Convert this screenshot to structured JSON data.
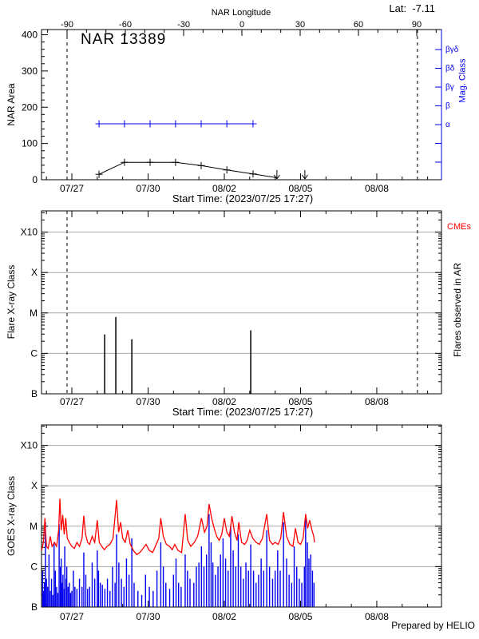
{
  "figure": {
    "title": "NAR 13389",
    "lat_label": "Lat:  -7.11",
    "top_axis_title": "NAR Longitude",
    "start_time_label": "Start Time: (2023/07/25 17:27)",
    "prepared_by": "Prepared by HELIO",
    "accent_blue": "#0000ee",
    "accent_red": "#ff0000",
    "grid_gray": "#a8a8a8"
  },
  "chart_data": [
    {
      "id": "nar_area_panel",
      "type": "line",
      "title": "NAR 13389",
      "ylabel": "NAR Area",
      "ylim": [
        0,
        400
      ],
      "yticks": [
        0,
        100,
        200,
        300,
        400
      ],
      "y_minor_step": 20,
      "grid": false,
      "x_axis_title": "Start Time: (2023/07/25 17:27)",
      "x_date_labels": [
        "07/27",
        "07/30",
        "08/02",
        "08/05",
        "08/08"
      ],
      "x_date_label_days": [
        0,
        3,
        6,
        9,
        12
      ],
      "x_range_days": [
        -1.19,
        14.55
      ],
      "top_axis": {
        "title": "NAR Longitude",
        "tick_values": [
          -90,
          -60,
          -30,
          0,
          30,
          60,
          90
        ],
        "minor_step": 10,
        "lat_annotation": "Lat:  -7.11"
      },
      "limb_crossing_days": [
        -0.19,
        13.6
      ],
      "right_axis": {
        "title": "Mag. Class",
        "labels": [
          "βγδ",
          "βδ",
          "βγ",
          "β",
          "α"
        ],
        "color": "#0000ee"
      },
      "area_series": {
        "name": "NAR area",
        "color": "#000000",
        "marker": "plus",
        "days": [
          1.07,
          2.07,
          3.08,
          4.08,
          5.09,
          6.1,
          7.13
        ],
        "values": [
          15,
          48,
          48,
          48,
          39,
          27,
          16
        ]
      },
      "area_upper_limits": {
        "marker": "down-arrow",
        "days": [
          8.07,
          9.17
        ],
        "values": [
          0,
          0
        ]
      },
      "mag_class_series": {
        "name": "Magnetic class",
        "color": "#0000ee",
        "level": "α",
        "marker": "plus",
        "days": [
          1.07,
          2.07,
          3.08,
          4.08,
          5.09,
          6.1,
          7.13
        ]
      }
    },
    {
      "id": "flares_panel",
      "type": "bar",
      "ylabel": "Flare X-ray Class",
      "yscale": "log",
      "ytick_labels": [
        "B",
        "C",
        "M",
        "X",
        "X10"
      ],
      "ytick_decades_above_B": [
        0,
        1,
        2,
        3,
        4
      ],
      "grid": true,
      "right_label": "Flares observed in AR",
      "cme_label": "CMEs",
      "cme_color": "#ff0000",
      "cme_events": [],
      "x_axis_title": "Start Time: (2023/07/25 17:27)",
      "x_date_labels": [
        "07/27",
        "07/30",
        "08/02",
        "08/05",
        "08/08"
      ],
      "x_date_label_days": [
        0,
        3,
        6,
        9,
        12
      ],
      "limb_crossing_days": [
        -0.19,
        13.6
      ],
      "flares": {
        "color": "#000000",
        "days": [
          1.29,
          1.73,
          2.36,
          7.04
        ],
        "classes": [
          "C3.0",
          "C8.0",
          "C2.2",
          "C3.7"
        ],
        "decades_above_B": [
          1.47,
          1.9,
          1.35,
          1.57
        ]
      }
    },
    {
      "id": "goes_panel",
      "type": "line",
      "ylabel": "GOES X-ray Class",
      "yscale": "log",
      "ytick_labels": [
        "B",
        "C",
        "M",
        "X",
        "X10"
      ],
      "ytick_decades_above_B": [
        0,
        1,
        2,
        3,
        4
      ],
      "grid": true,
      "credit": "Prepared by HELIO",
      "x_date_labels": [
        "07/27",
        "07/30",
        "08/02",
        "08/05",
        "08/08"
      ],
      "x_date_label_days": [
        0,
        3,
        6,
        9,
        12
      ],
      "series": [
        {
          "name": "GOES long channel",
          "color": "#ff0000",
          "style": "line",
          "points": [
            [
              -1.19,
              1.4
            ],
            [
              -1.12,
              1.6
            ],
            [
              -1.06,
              2.2
            ],
            [
              -1.0,
              1.5
            ],
            [
              -0.93,
              1.45
            ],
            [
              -0.85,
              1.75
            ],
            [
              -0.78,
              1.5
            ],
            [
              -0.68,
              1.6
            ],
            [
              -0.6,
              1.5
            ],
            [
              -0.52,
              1.9
            ],
            [
              -0.47,
              2.68
            ],
            [
              -0.42,
              1.9
            ],
            [
              -0.36,
              2.28
            ],
            [
              -0.3,
              1.8
            ],
            [
              -0.24,
              2.2
            ],
            [
              -0.18,
              1.7
            ],
            [
              -0.1,
              1.6
            ],
            [
              0.0,
              1.5
            ],
            [
              0.1,
              1.45
            ],
            [
              0.2,
              1.6
            ],
            [
              0.3,
              1.5
            ],
            [
              0.4,
              1.7
            ],
            [
              0.47,
              2.26
            ],
            [
              0.54,
              1.8
            ],
            [
              0.62,
              1.6
            ],
            [
              0.7,
              1.55
            ],
            [
              0.8,
              1.75
            ],
            [
              0.9,
              1.6
            ],
            [
              1.0,
              2.15
            ],
            [
              1.08,
              1.6
            ],
            [
              1.18,
              1.5
            ],
            [
              1.28,
              1.42
            ],
            [
              1.38,
              1.5
            ],
            [
              1.5,
              1.55
            ],
            [
              1.62,
              1.7
            ],
            [
              1.76,
              2.65
            ],
            [
              1.84,
              1.85
            ],
            [
              1.92,
              2.1
            ],
            [
              2.0,
              1.7
            ],
            [
              2.1,
              1.6
            ],
            [
              2.2,
              1.9
            ],
            [
              2.3,
              1.55
            ],
            [
              2.42,
              1.4
            ],
            [
              2.55,
              1.3
            ],
            [
              2.68,
              1.35
            ],
            [
              2.8,
              1.45
            ],
            [
              2.92,
              1.55
            ],
            [
              3.05,
              1.4
            ],
            [
              3.18,
              1.35
            ],
            [
              3.32,
              1.55
            ],
            [
              3.42,
              1.7
            ],
            [
              3.5,
              2.2
            ],
            [
              3.6,
              1.75
            ],
            [
              3.72,
              1.55
            ],
            [
              3.85,
              1.5
            ],
            [
              3.95,
              1.42
            ],
            [
              4.05,
              1.55
            ],
            [
              4.18,
              1.4
            ],
            [
              4.32,
              1.35
            ],
            [
              4.46,
              2.3
            ],
            [
              4.56,
              1.65
            ],
            [
              4.68,
              1.5
            ],
            [
              4.82,
              1.6
            ],
            [
              4.95,
              1.75
            ],
            [
              5.1,
              2.2
            ],
            [
              5.22,
              1.85
            ],
            [
              5.32,
              2.0
            ],
            [
              5.4,
              2.55
            ],
            [
              5.5,
              2.2
            ],
            [
              5.6,
              1.95
            ],
            [
              5.7,
              1.75
            ],
            [
              5.8,
              1.65
            ],
            [
              5.9,
              1.8
            ],
            [
              6.0,
              2.2
            ],
            [
              6.1,
              1.85
            ],
            [
              6.2,
              1.75
            ],
            [
              6.3,
              2.25
            ],
            [
              6.4,
              1.85
            ],
            [
              6.5,
              1.65
            ],
            [
              6.57,
              2.1
            ],
            [
              6.68,
              1.6
            ],
            [
              6.8,
              1.55
            ],
            [
              6.9,
              1.65
            ],
            [
              7.0,
              1.9
            ],
            [
              7.12,
              1.7
            ],
            [
              7.25,
              1.6
            ],
            [
              7.38,
              1.55
            ],
            [
              7.5,
              1.7
            ],
            [
              7.67,
              2.3
            ],
            [
              7.78,
              1.65
            ],
            [
              7.9,
              1.55
            ],
            [
              8.0,
              1.6
            ],
            [
              8.12,
              1.55
            ],
            [
              8.22,
              1.7
            ],
            [
              8.33,
              2.35
            ],
            [
              8.45,
              1.75
            ],
            [
              8.58,
              1.55
            ],
            [
              8.7,
              1.5
            ],
            [
              8.8,
              1.95
            ],
            [
              8.9,
              1.6
            ],
            [
              9.0,
              1.55
            ],
            [
              9.1,
              1.7
            ],
            [
              9.2,
              2.3
            ],
            [
              9.28,
              1.95
            ],
            [
              9.36,
              2.15
            ],
            [
              9.45,
              1.9
            ],
            [
              9.52,
              1.75
            ],
            [
              9.55,
              1.6
            ]
          ]
        },
        {
          "name": "GOES short channel",
          "color": "#0000ee",
          "style": "spikes",
          "points": [
            [
              -1.15,
              0.9
            ],
            [
              -1.12,
              0.4
            ],
            [
              -1.08,
              0.6
            ],
            [
              -1.04,
              2.1
            ],
            [
              -1.0,
              0.7
            ],
            [
              -0.95,
              0.5
            ],
            [
              -0.9,
              1.3
            ],
            [
              -0.85,
              0.4
            ],
            [
              -0.8,
              0.7
            ],
            [
              -0.75,
              0.3
            ],
            [
              -0.7,
              1.6
            ],
            [
              -0.65,
              0.9
            ],
            [
              -0.6,
              0.5
            ],
            [
              -0.55,
              0.35
            ],
            [
              -0.5,
              2.05
            ],
            [
              -0.45,
              1.0
            ],
            [
              -0.42,
              1.2
            ],
            [
              -0.38,
              0.6
            ],
            [
              -0.35,
              0.8
            ],
            [
              -0.3,
              0.45
            ],
            [
              -0.28,
              1.5
            ],
            [
              -0.22,
              0.7
            ],
            [
              -0.2,
              1.0
            ],
            [
              -0.15,
              0.5
            ],
            [
              -0.1,
              0.6
            ],
            [
              -0.05,
              0.35
            ],
            [
              0.0,
              0.4
            ],
            [
              0.06,
              0.9
            ],
            [
              0.12,
              0.5
            ],
            [
              0.2,
              0.45
            ],
            [
              0.3,
              0.7
            ],
            [
              0.4,
              0.5
            ],
            [
              0.47,
              1.35
            ],
            [
              0.55,
              0.8
            ],
            [
              0.62,
              0.45
            ],
            [
              0.7,
              0.5
            ],
            [
              0.8,
              1.1
            ],
            [
              0.9,
              0.7
            ],
            [
              1.0,
              1.4
            ],
            [
              1.05,
              0.9
            ],
            [
              1.12,
              0.6
            ],
            [
              1.2,
              0.55
            ],
            [
              1.3,
              0.45
            ],
            [
              1.4,
              0.7
            ],
            [
              1.5,
              0.4
            ],
            [
              1.6,
              1.0
            ],
            [
              1.7,
              0.6
            ],
            [
              1.76,
              1.8
            ],
            [
              1.85,
              1.1
            ],
            [
              1.95,
              0.7
            ],
            [
              2.05,
              0.5
            ],
            [
              2.15,
              1.2
            ],
            [
              2.25,
              0.8
            ],
            [
              2.36,
              1.7
            ],
            [
              2.45,
              0.6
            ],
            [
              2.6,
              0.4
            ],
            [
              2.75,
              0.3
            ],
            [
              2.9,
              0.8
            ],
            [
              3.05,
              0.5
            ],
            [
              3.2,
              0.4
            ],
            [
              3.35,
              0.9
            ],
            [
              3.5,
              1.6
            ],
            [
              3.6,
              1.0
            ],
            [
              3.7,
              0.6
            ],
            [
              3.85,
              0.45
            ],
            [
              4.0,
              0.8
            ],
            [
              4.1,
              1.2
            ],
            [
              4.2,
              0.6
            ],
            [
              4.3,
              0.5
            ],
            [
              4.46,
              1.3
            ],
            [
              4.55,
              0.9
            ],
            [
              4.65,
              0.7
            ],
            [
              4.8,
              0.6
            ],
            [
              4.9,
              1.0
            ],
            [
              5.0,
              1.1
            ],
            [
              5.1,
              1.5
            ],
            [
              5.2,
              1.0
            ],
            [
              5.3,
              1.3
            ],
            [
              5.4,
              2.3
            ],
            [
              5.48,
              1.6
            ],
            [
              5.55,
              1.1
            ],
            [
              5.65,
              0.8
            ],
            [
              5.75,
              1.0
            ],
            [
              5.85,
              1.3
            ],
            [
              5.95,
              1.7
            ],
            [
              6.05,
              1.2
            ],
            [
              6.15,
              0.9
            ],
            [
              6.25,
              2.0
            ],
            [
              6.35,
              1.4
            ],
            [
              6.45,
              1.0
            ],
            [
              6.55,
              1.8
            ],
            [
              6.65,
              1.0
            ],
            [
              6.75,
              0.7
            ],
            [
              6.85,
              1.1
            ],
            [
              6.95,
              0.9
            ],
            [
              7.04,
              1.55
            ],
            [
              7.15,
              0.9
            ],
            [
              7.25,
              0.6
            ],
            [
              7.35,
              0.8
            ],
            [
              7.45,
              1.2
            ],
            [
              7.55,
              0.9
            ],
            [
              7.67,
              1.9
            ],
            [
              7.78,
              1.0
            ],
            [
              7.9,
              0.7
            ],
            [
              8.0,
              0.9
            ],
            [
              8.1,
              1.4
            ],
            [
              8.2,
              0.9
            ],
            [
              8.33,
              2.1
            ],
            [
              8.45,
              1.2
            ],
            [
              8.55,
              0.8
            ],
            [
              8.65,
              0.6
            ],
            [
              8.75,
              1.5
            ],
            [
              8.85,
              1.0
            ],
            [
              8.95,
              0.7
            ],
            [
              9.05,
              0.6
            ],
            [
              9.15,
              1.0
            ],
            [
              9.2,
              2.2
            ],
            [
              9.27,
              1.6
            ],
            [
              9.33,
              1.2
            ],
            [
              9.4,
              1.3
            ],
            [
              9.47,
              0.9
            ],
            [
              9.53,
              0.6
            ]
          ]
        }
      ]
    }
  ]
}
